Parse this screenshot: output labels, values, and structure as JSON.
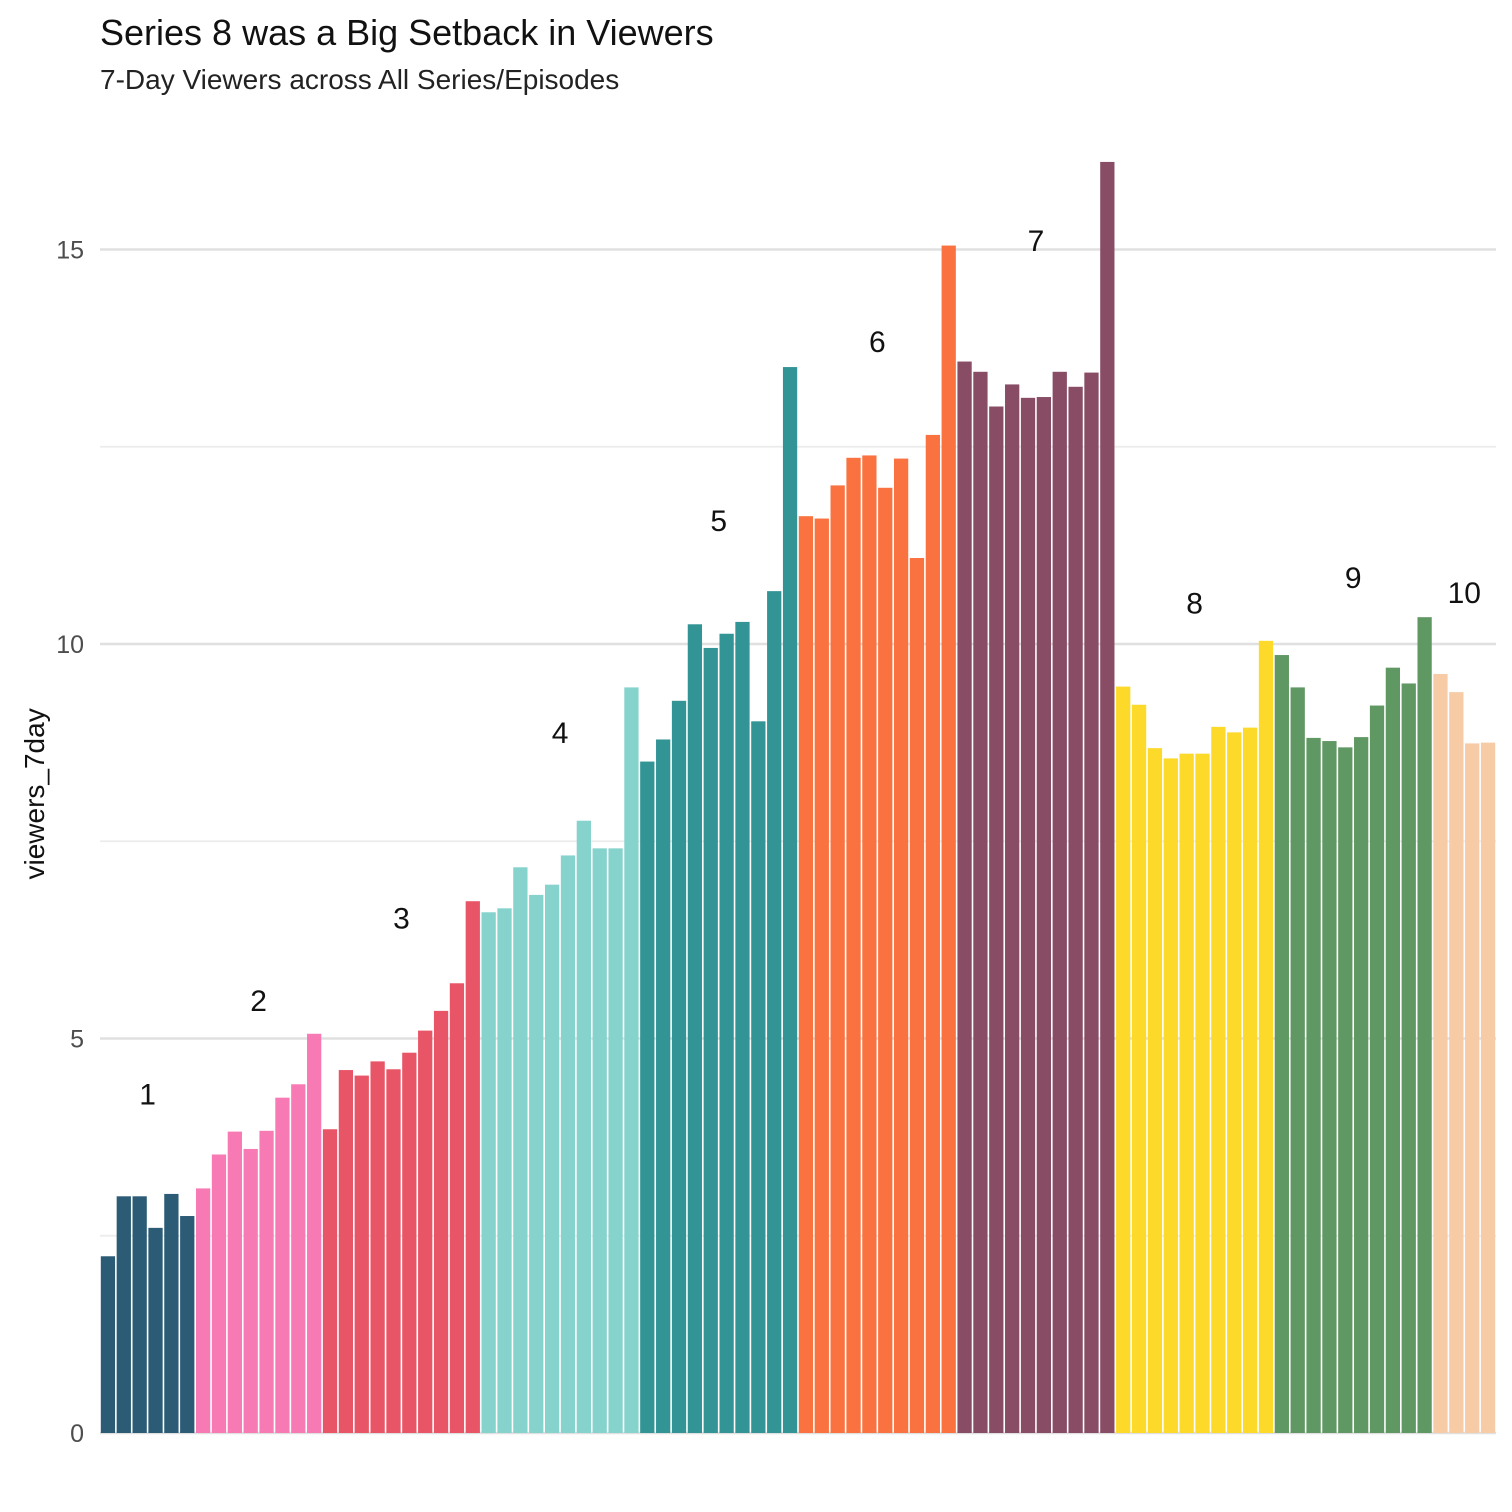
{
  "title": "Series 8 was a Big Setback in Viewers",
  "subtitle": "7-Day Viewers across All Series/Episodes",
  "chart_data": {
    "type": "bar",
    "title": "Series 8 was a Big Setback in Viewers",
    "subtitle": "7-Day Viewers across All Series/Episodes",
    "xlabel": "",
    "ylabel": "viewers_7day",
    "ylim": [
      0,
      16.2
    ],
    "yticks": [
      0,
      5,
      10,
      15
    ],
    "grid": true,
    "legend": "none",
    "series": [
      {
        "series_label": "1",
        "color": "#2b5b75",
        "values": [
          2.24,
          3.0,
          3.0,
          2.6,
          3.03,
          2.75
        ]
      },
      {
        "series_label": "2",
        "color": "#f77ab4",
        "values": [
          3.1,
          3.53,
          3.82,
          3.6,
          3.83,
          4.25,
          4.42,
          5.06
        ]
      },
      {
        "series_label": "3",
        "color": "#e85566",
        "values": [
          3.85,
          4.6,
          4.53,
          4.71,
          4.61,
          4.82,
          5.1,
          5.35,
          5.7,
          6.74
        ]
      },
      {
        "series_label": "4",
        "color": "#86d2cd",
        "values": [
          6.6,
          6.65,
          7.17,
          6.82,
          6.95,
          7.32,
          7.76,
          7.41,
          7.41,
          9.45
        ]
      },
      {
        "series_label": "5",
        "color": "#339495",
        "values": [
          8.51,
          8.79,
          9.28,
          10.25,
          9.95,
          10.13,
          10.28,
          9.02,
          10.67,
          13.51
        ]
      },
      {
        "series_label": "6",
        "color": "#f97240",
        "values": [
          11.62,
          11.59,
          12.01,
          12.36,
          12.39,
          11.98,
          12.35,
          11.09,
          12.65,
          15.05
        ]
      },
      {
        "series_label": "7",
        "color": "#884c64",
        "values": [
          13.58,
          13.45,
          13.01,
          13.29,
          13.12,
          13.13,
          13.45,
          13.26,
          13.44,
          16.11
        ]
      },
      {
        "series_label": "8",
        "color": "#fdd929",
        "values": [
          9.46,
          9.23,
          8.68,
          8.55,
          8.61,
          8.61,
          8.95,
          8.88,
          8.94,
          10.04
        ]
      },
      {
        "series_label": "9",
        "color": "#609863",
        "values": [
          9.86,
          9.45,
          8.81,
          8.77,
          8.69,
          8.82,
          9.22,
          9.7,
          9.5,
          10.34
        ]
      },
      {
        "series_label": "10",
        "color": "#f7cba5",
        "values": [
          9.62,
          9.39,
          8.74,
          8.75
        ]
      }
    ]
  }
}
